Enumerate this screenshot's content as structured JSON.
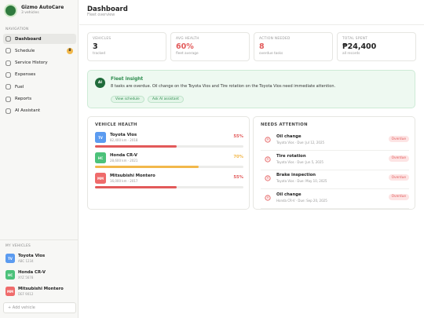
{
  "brand": {
    "name": "Gizmo AutoCare",
    "subtitle": "3 vehicles"
  },
  "nav": {
    "heading": "NAVIGATION",
    "items": [
      {
        "label": "Dashboard",
        "active": true
      },
      {
        "label": "Schedule",
        "badge": "8"
      },
      {
        "label": "Service History"
      },
      {
        "label": "Expenses"
      },
      {
        "label": "Fuel"
      },
      {
        "label": "Reports"
      },
      {
        "label": "AI Assistant"
      }
    ]
  },
  "my_vehicles": {
    "heading": "MY VEHICLES",
    "add": "+ Add vehicle",
    "items": [
      {
        "initials": "TV",
        "name": "Toyota Vios",
        "plate": "ABC 1234",
        "color": "#5b9bf0"
      },
      {
        "initials": "HC",
        "name": "Honda CR-V",
        "plate": "XYZ 5678",
        "color": "#4cc27a"
      },
      {
        "initials": "MM",
        "name": "Mitsubishi Montero",
        "plate": "DEF 9012",
        "color": "#ef6b6b"
      }
    ]
  },
  "header": {
    "title": "Dashboard",
    "subtitle": "Fleet overview"
  },
  "stats": [
    {
      "label": "VEHICLES",
      "value": "3",
      "note": "tracked",
      "color": "#222222"
    },
    {
      "label": "AVG HEALTH",
      "value": "60%",
      "note": "fleet average",
      "color": "#e25a5a"
    },
    {
      "label": "ACTION NEEDED",
      "value": "8",
      "note": "overdue tasks",
      "color": "#e25a5a"
    },
    {
      "label": "TOTAL SPENT",
      "value": "₱24,400",
      "note": "all records",
      "color": "#222222"
    }
  ],
  "insight": {
    "icon": "AI",
    "title": "Fleet insight",
    "text": "8 tasks are overdue. Oil change on the Toyota Vios and Tire rotation on the Toyota Vios need immediate attention.",
    "buttons": [
      "View schedule",
      "Ask AI assistant"
    ]
  },
  "vehicle_health": {
    "title": "VEHICLE HEALTH",
    "items": [
      {
        "initials": "TV",
        "name": "Toyota Vios",
        "detail": "82,400 km · 2018",
        "health": 55,
        "health_label": "55%",
        "color": "#e25a5a",
        "avatar_color": "#5b9bf0"
      },
      {
        "initials": "HC",
        "name": "Honda CR-V",
        "detail": "28,600 km · 2021",
        "health": 70,
        "health_label": "70%",
        "color": "#f2b84b",
        "avatar_color": "#4cc27a"
      },
      {
        "initials": "MM",
        "name": "Mitsubishi Montero",
        "detail": "16,000 km · 2017",
        "health": 55,
        "health_label": "55%",
        "color": "#e25a5a",
        "avatar_color": "#ef6b6b"
      }
    ]
  },
  "needs_attention": {
    "title": "NEEDS ATTENTION",
    "items": [
      {
        "task": "Oil change",
        "detail": "Toyota Vios · Due: Jul 12, 2025",
        "status": "Overdue"
      },
      {
        "task": "Tire rotation",
        "detail": "Toyota Vios · Due: Jun 5, 2025",
        "status": "Overdue"
      },
      {
        "task": "Brake inspection",
        "detail": "Toyota Vios · Due: May 10, 2025",
        "status": "Overdue"
      },
      {
        "task": "Oil change",
        "detail": "Honda CR-V · Due: Sep 20, 2025",
        "status": "Overdue"
      }
    ]
  }
}
